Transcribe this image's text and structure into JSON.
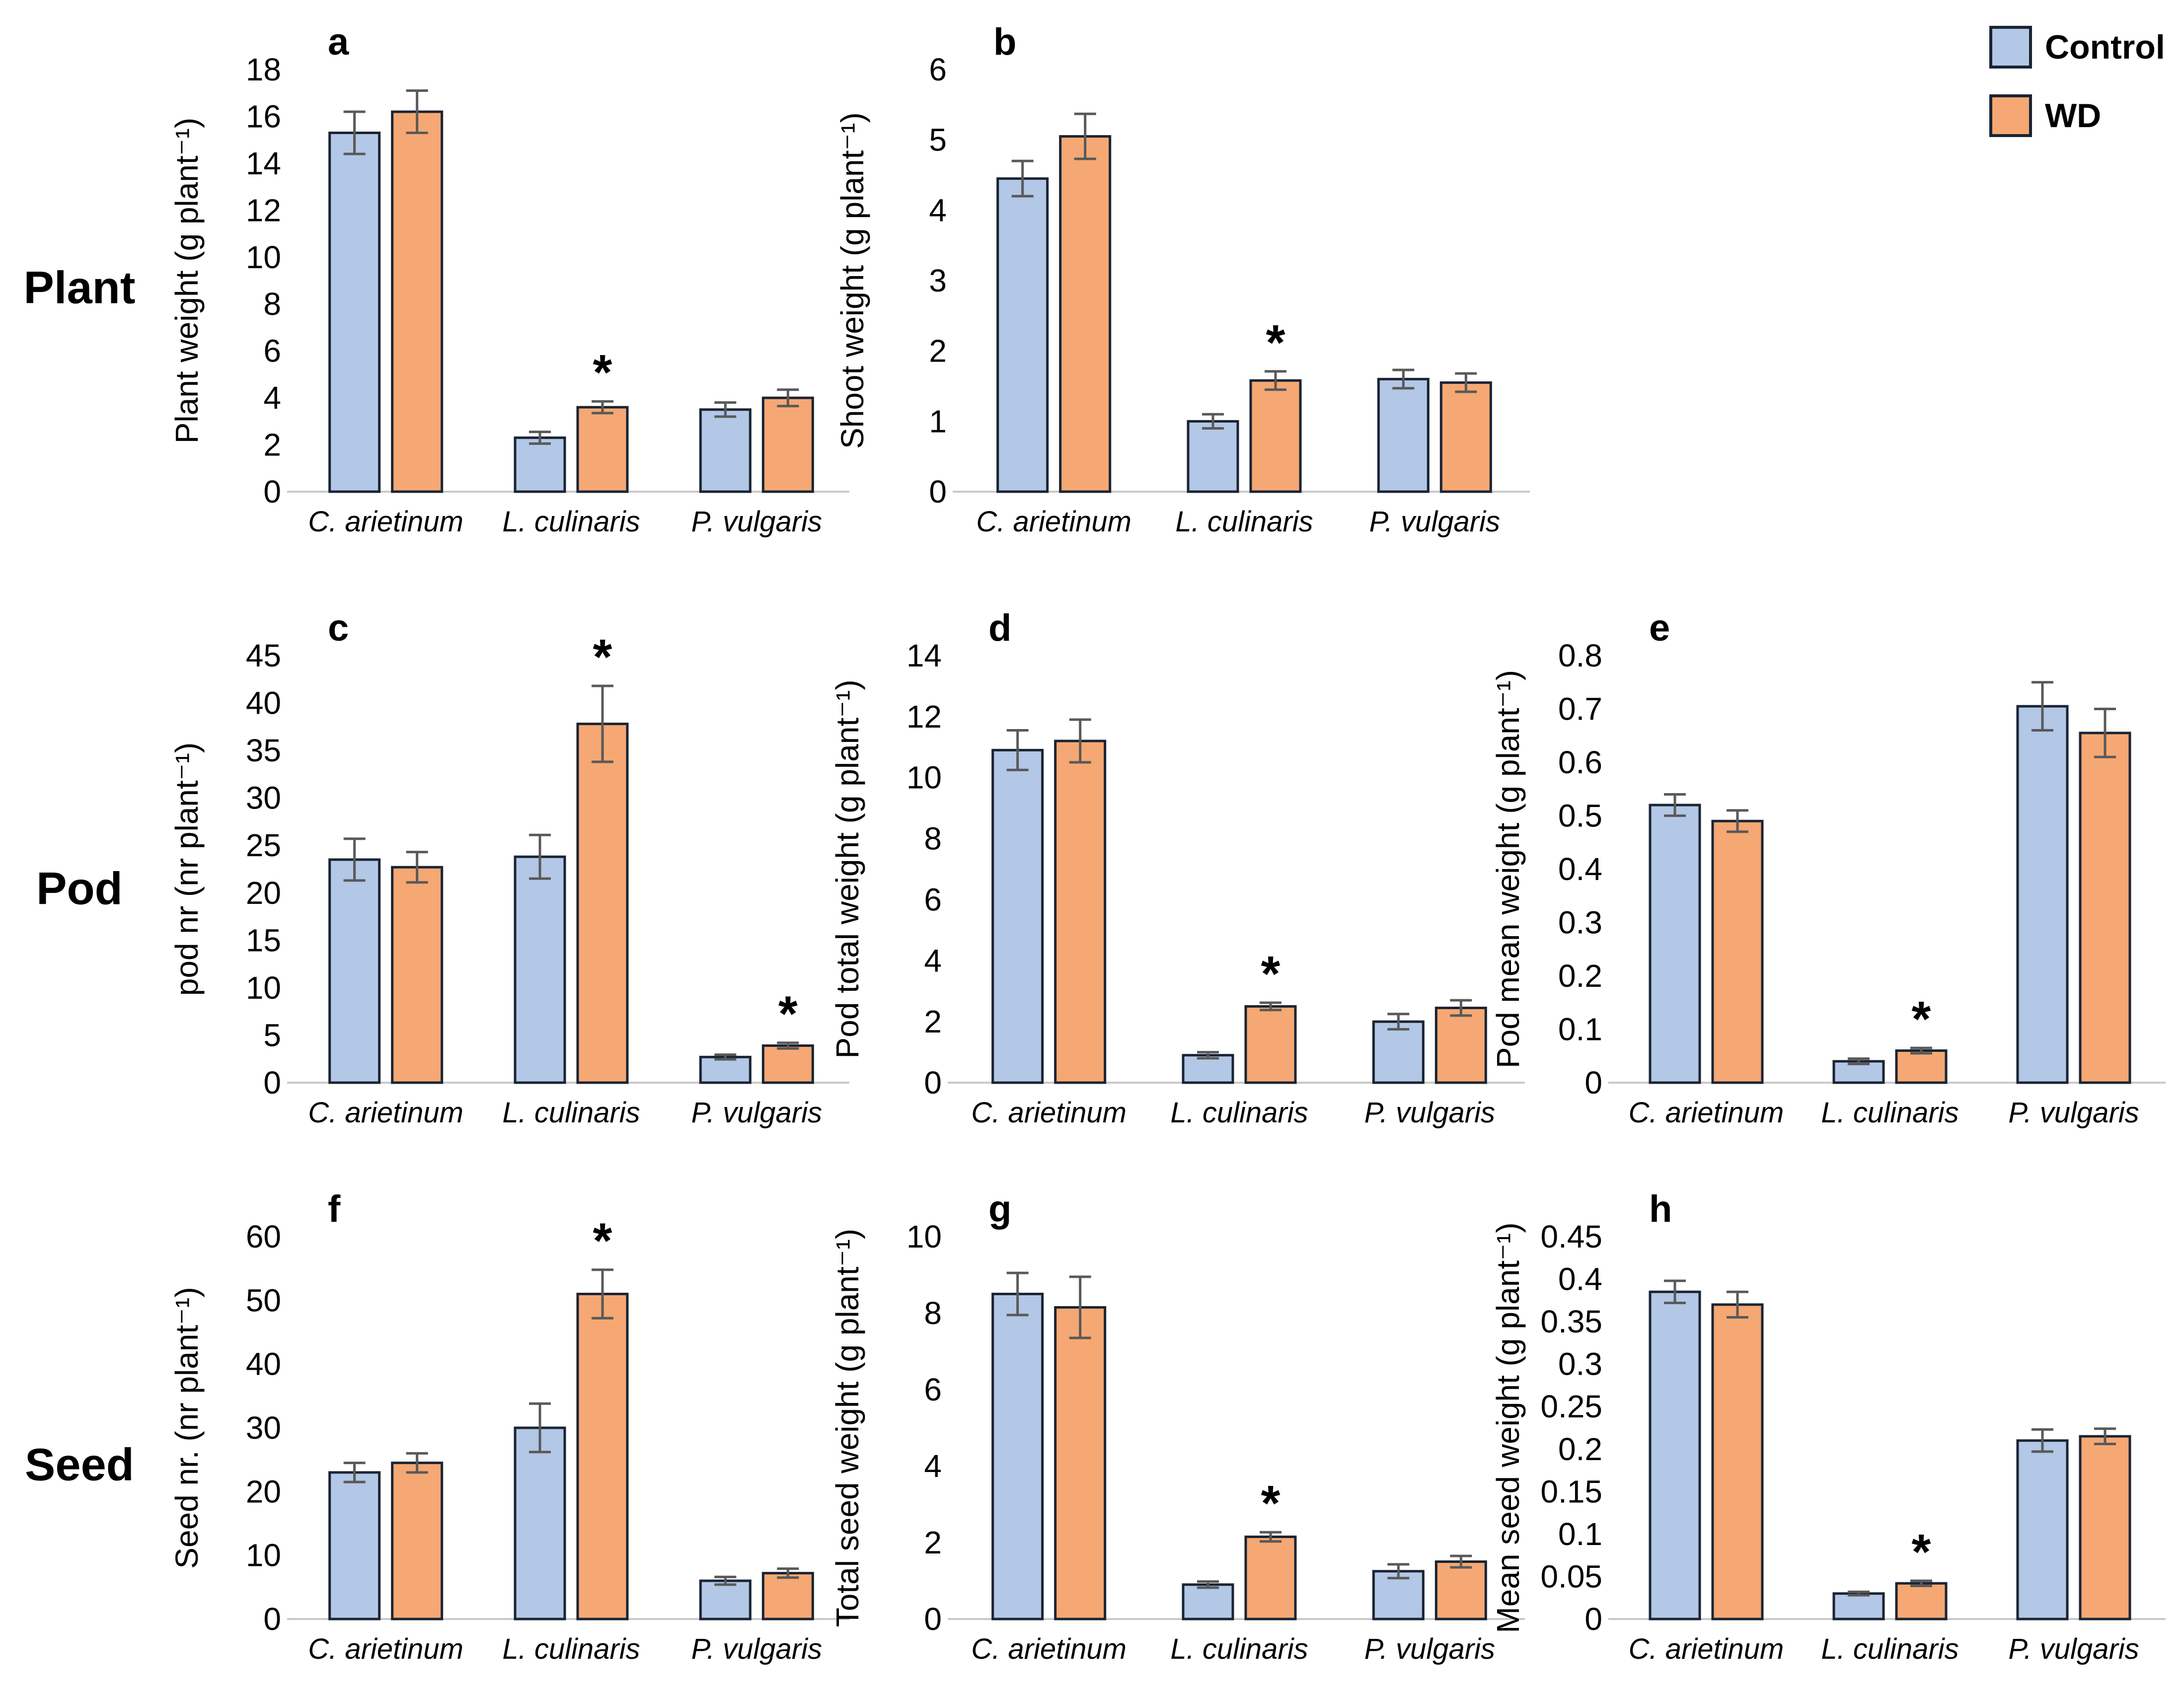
{
  "row_labels": [
    "Plant",
    "Pod",
    "Seed"
  ],
  "legend": {
    "items": [
      {
        "label": "Control",
        "color": "#B3C7E6"
      },
      {
        "label": "WD",
        "color": "#F5A873"
      }
    ]
  },
  "colors": {
    "control_fill": "#B3C7E6",
    "wd_fill": "#F5A873",
    "bar_outline": "#1A2433",
    "error_bar": "#595959",
    "baseline": "#C9C9C9",
    "text": "#000000"
  },
  "categories": [
    "C. arietinum",
    "L. culinaris",
    "P. vulgaris"
  ],
  "chart_data": [
    {
      "panel": "a",
      "group": "Plant",
      "type": "bar",
      "ylabel": "Plant weight (g plant⁻¹)",
      "ylim": [
        0,
        18
      ],
      "yticks": [
        0,
        2,
        4,
        6,
        8,
        10,
        12,
        14,
        16,
        18
      ],
      "ytick_labels": [
        "0",
        "2",
        "4",
        "6",
        "8",
        "10",
        "12",
        "14",
        "16",
        "18"
      ],
      "categories": [
        "C. arietinum",
        "L. culinaris",
        "P. vulgaris"
      ],
      "series": [
        {
          "name": "Control",
          "values": [
            15.3,
            2.3,
            3.5
          ],
          "errors": [
            0.9,
            0.25,
            0.3
          ]
        },
        {
          "name": "WD",
          "values": [
            16.2,
            3.6,
            4.0
          ],
          "errors": [
            0.9,
            0.25,
            0.35
          ]
        }
      ],
      "significant_wd": [
        false,
        true,
        false
      ]
    },
    {
      "panel": "b",
      "group": "Plant",
      "type": "bar",
      "ylabel": "Shoot weight (g plant⁻¹)",
      "ylim": [
        0,
        6
      ],
      "yticks": [
        0,
        1,
        2,
        3,
        4,
        5,
        6
      ],
      "ytick_labels": [
        "0",
        "1",
        "2",
        "3",
        "4",
        "5",
        "6"
      ],
      "categories": [
        "C. arietinum",
        "L. culinaris",
        "P. vulgaris"
      ],
      "series": [
        {
          "name": "Control",
          "values": [
            4.45,
            1.0,
            1.6
          ],
          "errors": [
            0.25,
            0.1,
            0.13
          ]
        },
        {
          "name": "WD",
          "values": [
            5.05,
            1.58,
            1.55
          ],
          "errors": [
            0.32,
            0.13,
            0.13
          ]
        }
      ],
      "significant_wd": [
        false,
        true,
        false
      ]
    },
    {
      "panel": "c",
      "group": "Pod",
      "type": "bar",
      "ylabel": "pod nr (nr plant⁻¹)",
      "ylim": [
        0,
        45
      ],
      "yticks": [
        0,
        5,
        10,
        15,
        20,
        25,
        30,
        35,
        40,
        45
      ],
      "ytick_labels": [
        "0",
        "5",
        "10",
        "15",
        "20",
        "25",
        "30",
        "35",
        "40",
        "45"
      ],
      "categories": [
        "C. arietinum",
        "L. culinaris",
        "P. vulgaris"
      ],
      "series": [
        {
          "name": "Control",
          "values": [
            23.5,
            23.8,
            2.7
          ],
          "errors": [
            2.2,
            2.3,
            0.25
          ]
        },
        {
          "name": "WD",
          "values": [
            22.7,
            37.8,
            3.9
          ],
          "errors": [
            1.6,
            4.0,
            0.3
          ]
        }
      ],
      "significant_wd": [
        false,
        true,
        true
      ]
    },
    {
      "panel": "d",
      "group": "Pod",
      "type": "bar",
      "ylabel": "Pod total weight (g plant⁻¹)",
      "ylim": [
        0,
        14
      ],
      "yticks": [
        0,
        2,
        4,
        6,
        8,
        10,
        12,
        14
      ],
      "ytick_labels": [
        "0",
        "2",
        "4",
        "6",
        "8",
        "10",
        "12",
        "14"
      ],
      "categories": [
        "C. arietinum",
        "L. culinaris",
        "P. vulgaris"
      ],
      "series": [
        {
          "name": "Control",
          "values": [
            10.9,
            0.9,
            2.0
          ],
          "errors": [
            0.65,
            0.1,
            0.25
          ]
        },
        {
          "name": "WD",
          "values": [
            11.2,
            2.5,
            2.45
          ],
          "errors": [
            0.7,
            0.12,
            0.25
          ]
        }
      ],
      "significant_wd": [
        false,
        true,
        false
      ]
    },
    {
      "panel": "e",
      "group": "Pod",
      "type": "bar",
      "ylabel": "Pod mean weight (g plant⁻¹)",
      "ylim": [
        0,
        0.8
      ],
      "yticks": [
        0,
        0.1,
        0.2,
        0.3,
        0.4,
        0.5,
        0.6,
        0.7,
        0.8
      ],
      "ytick_labels": [
        "0",
        "0.1",
        "0.2",
        "0.3",
        "0.4",
        "0.5",
        "0.6",
        "0.7",
        "0.8"
      ],
      "categories": [
        "C. arietinum",
        "L. culinaris",
        "P. vulgaris"
      ],
      "series": [
        {
          "name": "Control",
          "values": [
            0.52,
            0.04,
            0.705
          ],
          "errors": [
            0.02,
            0.005,
            0.045
          ]
        },
        {
          "name": "WD",
          "values": [
            0.49,
            0.06,
            0.655
          ],
          "errors": [
            0.02,
            0.005,
            0.045
          ]
        }
      ],
      "significant_wd": [
        false,
        true,
        false
      ]
    },
    {
      "panel": "f",
      "group": "Seed",
      "type": "bar",
      "ylabel": "Seed nr. (nr plant⁻¹)",
      "ylim": [
        0,
        60
      ],
      "yticks": [
        0,
        10,
        20,
        30,
        40,
        50,
        60
      ],
      "ytick_labels": [
        "0",
        "10",
        "20",
        "30",
        "40",
        "50",
        "60"
      ],
      "categories": [
        "C. arietinum",
        "L. culinaris",
        "P. vulgaris"
      ],
      "series": [
        {
          "name": "Control",
          "values": [
            23,
            30,
            6
          ],
          "errors": [
            1.5,
            3.8,
            0.6
          ]
        },
        {
          "name": "WD",
          "values": [
            24.5,
            51,
            7.2
          ],
          "errors": [
            1.5,
            3.8,
            0.7
          ]
        }
      ],
      "significant_wd": [
        false,
        true,
        false
      ]
    },
    {
      "panel": "g",
      "group": "Seed",
      "type": "bar",
      "ylabel": "Total seed weight (g plant⁻¹)",
      "ylim": [
        0,
        10
      ],
      "yticks": [
        0,
        2,
        4,
        6,
        8,
        10
      ],
      "ytick_labels": [
        "0",
        "2",
        "4",
        "6",
        "8",
        "10"
      ],
      "categories": [
        "C. arietinum",
        "L. culinaris",
        "P. vulgaris"
      ],
      "series": [
        {
          "name": "Control",
          "values": [
            8.5,
            0.9,
            1.25
          ],
          "errors": [
            0.55,
            0.08,
            0.18
          ]
        },
        {
          "name": "WD",
          "values": [
            8.15,
            2.15,
            1.5
          ],
          "errors": [
            0.8,
            0.12,
            0.15
          ]
        }
      ],
      "significant_wd": [
        false,
        true,
        false
      ]
    },
    {
      "panel": "h",
      "group": "Seed",
      "type": "bar",
      "ylabel": "Mean seed weight (g plant⁻¹)",
      "ylim": [
        0,
        0.45
      ],
      "yticks": [
        0,
        0.05,
        0.1,
        0.15,
        0.2,
        0.25,
        0.3,
        0.35,
        0.4,
        0.45
      ],
      "ytick_labels": [
        "0",
        "0.05",
        "0.1",
        "0.15",
        "0.2",
        "0.25",
        "0.3",
        "0.35",
        "0.4",
        "0.45"
      ],
      "categories": [
        "C. arietinum",
        "L. culinaris",
        "P. vulgaris"
      ],
      "series": [
        {
          "name": "Control",
          "values": [
            0.385,
            0.03,
            0.21
          ],
          "errors": [
            0.013,
            0.002,
            0.013
          ]
        },
        {
          "name": "WD",
          "values": [
            0.37,
            0.042,
            0.215
          ],
          "errors": [
            0.015,
            0.003,
            0.009
          ]
        }
      ],
      "significant_wd": [
        false,
        true,
        false
      ]
    }
  ]
}
